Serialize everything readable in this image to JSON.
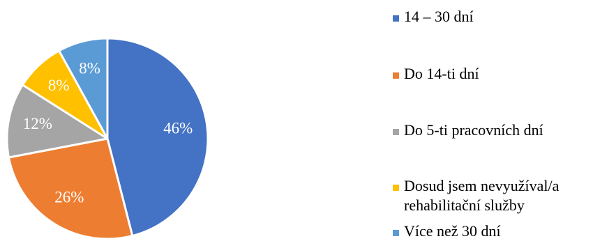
{
  "chart_data": {
    "type": "pie",
    "title": "",
    "categories": [
      "14 – 30 dní",
      "Do 14-ti dní",
      "Do 5-ti pracovních dní",
      "Dosud jsem nevyužíval/a rehabilitační služby",
      "Více než 30 dní"
    ],
    "values": [
      46,
      26,
      12,
      8,
      8
    ],
    "value_labels": [
      "46%",
      "26%",
      "12%",
      "8%",
      "8%"
    ],
    "colors": [
      "#4472C4",
      "#ED7D31",
      "#A5A5A5",
      "#FFC000",
      "#5B9BD5"
    ],
    "legend_placement": "right"
  },
  "legend": {
    "items": [
      {
        "label": "14 – 30 dní",
        "color": "#4472C4"
      },
      {
        "label": "Do 14-ti dní",
        "color": "#ED7D31"
      },
      {
        "label": "Do 5-ti pracovních dní",
        "color": "#A5A5A5"
      },
      {
        "label": "Dosud jsem nevyužíval/a\nrehabilitační služby",
        "color": "#FFC000"
      },
      {
        "label": "Více než 30 dní",
        "color": "#5B9BD5"
      }
    ]
  }
}
